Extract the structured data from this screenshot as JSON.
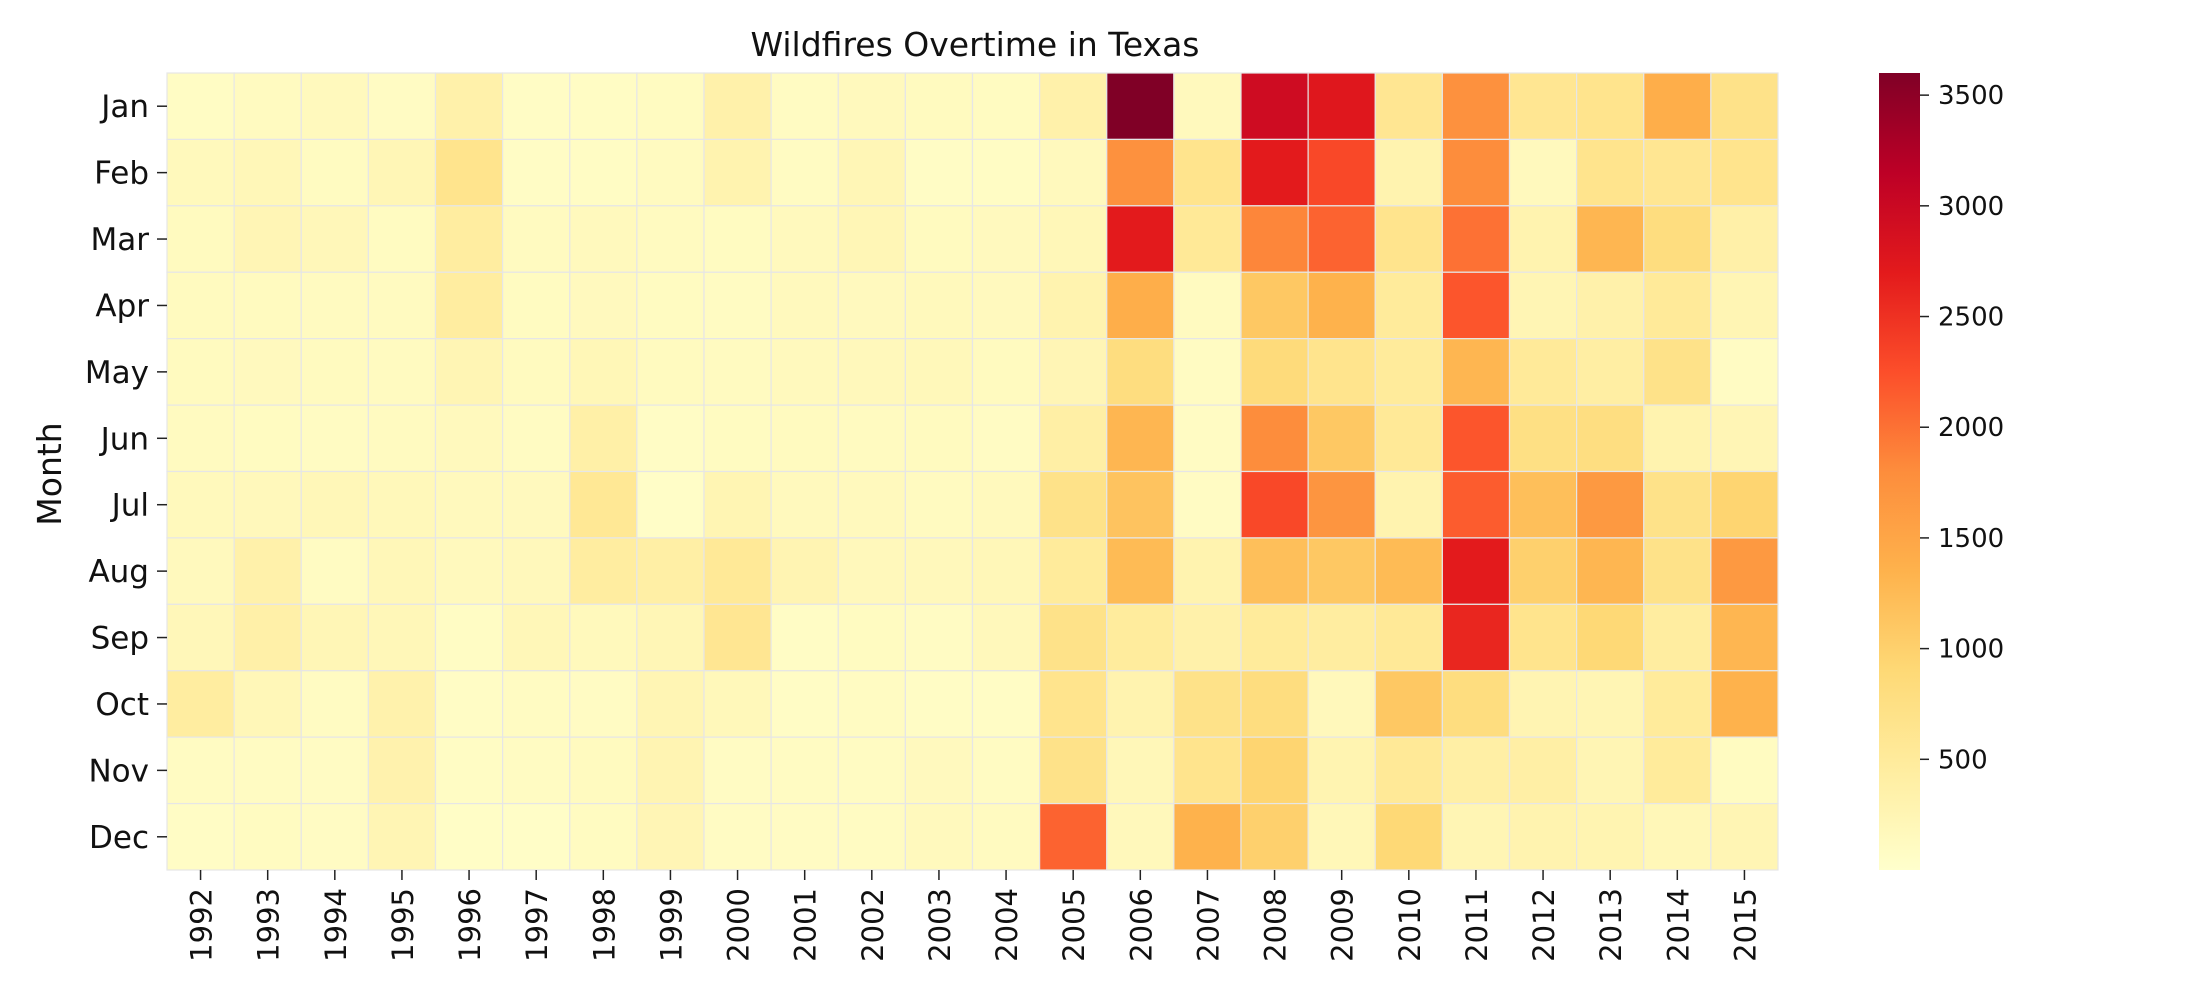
{
  "chart_data": {
    "type": "heatmap",
    "title": "Wildfires Overtime in Texas",
    "xlabel": "",
    "ylabel": "Month",
    "x_categories": [
      "1992",
      "1993",
      "1994",
      "1995",
      "1996",
      "1997",
      "1998",
      "1999",
      "2000",
      "2001",
      "2002",
      "2003",
      "2004",
      "2005",
      "2006",
      "2007",
      "2008",
      "2009",
      "2010",
      "2011",
      "2012",
      "2013",
      "2014",
      "2015"
    ],
    "y_categories": [
      "Jan",
      "Feb",
      "Mar",
      "Apr",
      "May",
      "Jun",
      "Jul",
      "Aug",
      "Sep",
      "Oct",
      "Nov",
      "Dec"
    ],
    "values": [
      [
        80,
        120,
        150,
        90,
        350,
        70,
        80,
        110,
        350,
        100,
        150,
        130,
        110,
        350,
        3600,
        150,
        2950,
        2750,
        600,
        1750,
        600,
        650,
        1400,
        700
      ],
      [
        160,
        200,
        110,
        230,
        650,
        70,
        80,
        120,
        300,
        100,
        220,
        70,
        80,
        150,
        1750,
        650,
        2700,
        2300,
        300,
        1800,
        150,
        650,
        600,
        650
      ],
      [
        130,
        240,
        190,
        110,
        450,
        120,
        150,
        120,
        110,
        150,
        230,
        130,
        140,
        200,
        2700,
        550,
        1850,
        2100,
        650,
        2000,
        300,
        1300,
        800,
        370
      ],
      [
        130,
        130,
        120,
        120,
        450,
        110,
        140,
        110,
        100,
        150,
        140,
        160,
        140,
        300,
        1400,
        120,
        1100,
        1350,
        500,
        2200,
        250,
        350,
        520,
        250
      ],
      [
        130,
        140,
        130,
        120,
        250,
        130,
        210,
        130,
        120,
        150,
        170,
        180,
        130,
        240,
        800,
        100,
        850,
        650,
        500,
        1300,
        520,
        420,
        700,
        90
      ],
      [
        120,
        110,
        100,
        120,
        150,
        100,
        380,
        70,
        110,
        130,
        120,
        130,
        90,
        400,
        1300,
        90,
        1800,
        1100,
        550,
        2200,
        750,
        780,
        300,
        240
      ],
      [
        160,
        170,
        200,
        180,
        150,
        140,
        570,
        50,
        260,
        150,
        150,
        120,
        150,
        700,
        1150,
        90,
        2300,
        1700,
        300,
        2150,
        1200,
        1650,
        700,
        950
      ],
      [
        150,
        350,
        100,
        200,
        150,
        170,
        450,
        400,
        550,
        270,
        170,
        170,
        200,
        500,
        1250,
        300,
        1200,
        1100,
        1250,
        2700,
        1000,
        1300,
        700,
        1650
      ],
      [
        190,
        370,
        220,
        200,
        80,
        200,
        160,
        230,
        600,
        70,
        110,
        90,
        170,
        700,
        480,
        350,
        500,
        450,
        550,
        2600,
        650,
        900,
        450,
        1300
      ],
      [
        450,
        200,
        100,
        330,
        70,
        100,
        90,
        250,
        180,
        70,
        100,
        70,
        70,
        650,
        300,
        700,
        800,
        170,
        1100,
        800,
        270,
        250,
        500,
        1350
      ],
      [
        100,
        100,
        90,
        320,
        80,
        100,
        130,
        270,
        90,
        100,
        100,
        140,
        100,
        700,
        200,
        650,
        950,
        280,
        550,
        400,
        400,
        250,
        500,
        110
      ],
      [
        70,
        110,
        90,
        250,
        60,
        50,
        110,
        240,
        90,
        90,
        100,
        150,
        120,
        2100,
        170,
        1350,
        1000,
        200,
        900,
        250,
        300,
        280,
        200,
        250
      ]
    ],
    "colorbar": {
      "colormap": "YlOrRd",
      "min": 0,
      "max": 3600,
      "ticks": [
        500,
        1000,
        1500,
        2000,
        2500,
        3000,
        3500
      ]
    },
    "grid": false,
    "cell_borders": true
  }
}
